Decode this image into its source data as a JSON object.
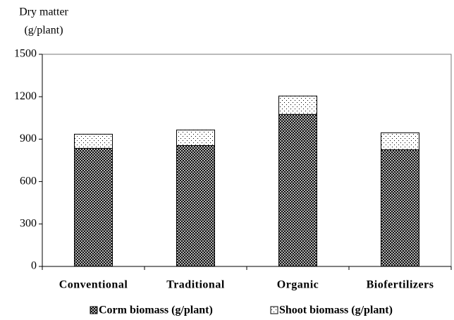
{
  "chart_data": {
    "type": "stacked_bar",
    "y_label": [
      "Dry matter",
      "(g/plant)"
    ],
    "categories": [
      "Conventional",
      "Traditional",
      "Organic",
      "Biofertilizers"
    ],
    "series": [
      {
        "name": "Corm biomass (g/plant)",
        "color": "#000000",
        "pattern": "crosshatch",
        "values": [
          835,
          855,
          1075,
          825
        ]
      },
      {
        "name": "Shoot biomass (g/plant)",
        "color": "#000000",
        "pattern": "dots",
        "values": [
          100,
          110,
          130,
          120
        ]
      }
    ],
    "ylim": [
      0,
      1500
    ],
    "yticks": [
      0,
      300,
      600,
      900,
      1200,
      1500
    ],
    "grid": false,
    "legend": "bottom"
  }
}
